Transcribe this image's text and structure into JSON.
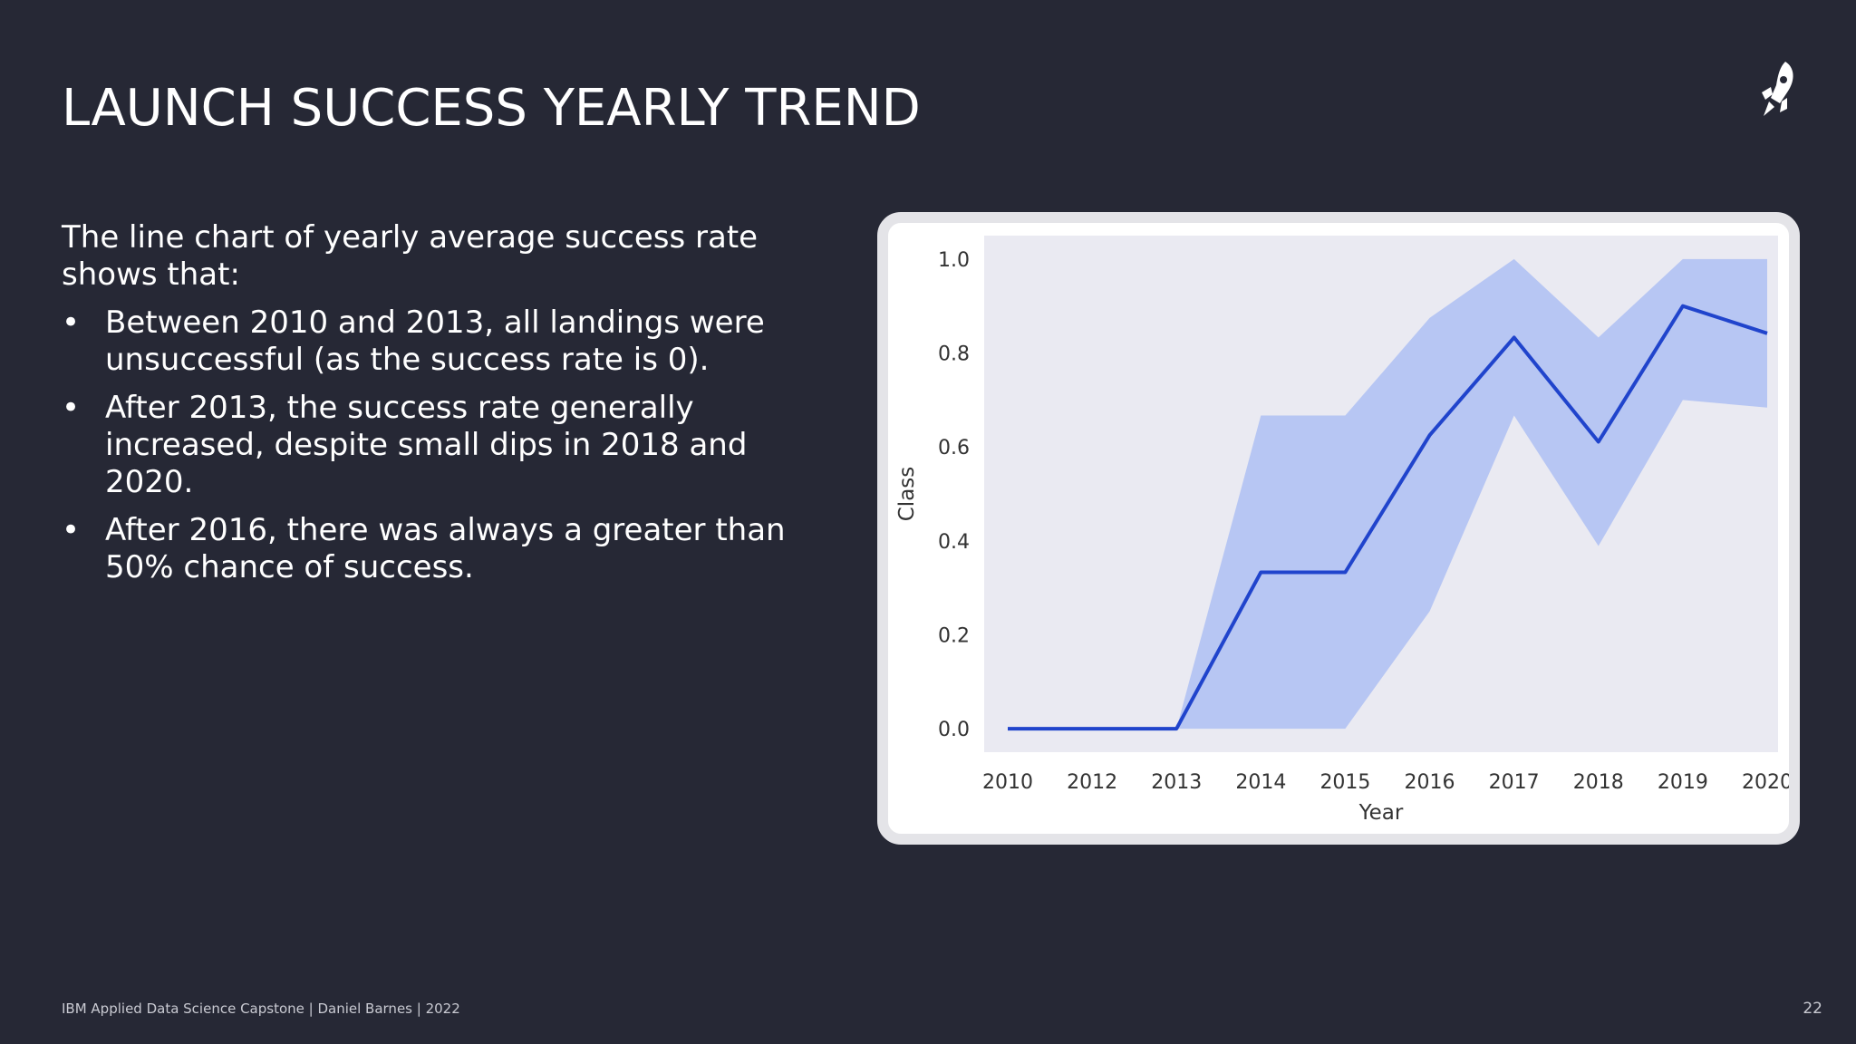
{
  "slide": {
    "title": "LAUNCH SUCCESS YEARLY TREND",
    "intro": "The line chart of yearly average success rate shows that:",
    "bullets": [
      "Between 2010 and 2013, all landings were unsuccessful (as the success rate is 0).",
      "After 2013, the success rate generally increased, despite small dips in 2018 and 2020.",
      "After 2016, there was always a greater than 50% chance of success."
    ],
    "bullet_glyph": "•",
    "footer": "IBM Applied Data Science Capstone  |  Daniel Barnes  |  2022",
    "page_number": "22",
    "logo_icon": "rocket-icon"
  },
  "colors": {
    "background": "#262835",
    "plot_background": "#eaeaf2",
    "line": "#2044cc",
    "band": "#b7c6f3"
  },
  "chart_data": {
    "type": "line",
    "xlabel": "Year",
    "ylabel": "Class",
    "x": [
      2010,
      2012,
      2013,
      2014,
      2015,
      2016,
      2017,
      2018,
      2019,
      2020
    ],
    "x_tick_labels": [
      "2010",
      "2012",
      "2013",
      "2014",
      "2015",
      "2016",
      "2017",
      "2018",
      "2019",
      "2020"
    ],
    "y_ticks": [
      0.0,
      0.2,
      0.4,
      0.6,
      0.8,
      1.0
    ],
    "y_tick_labels": [
      "0.0",
      "0.2",
      "0.4",
      "0.6",
      "0.8",
      "1.0"
    ],
    "ylim": [
      -0.05,
      1.05
    ],
    "series": [
      {
        "values": [
          0.0,
          0.0,
          0.0,
          0.333,
          0.333,
          0.625,
          0.833,
          0.611,
          0.9,
          0.842
        ],
        "ci_lower": [
          0.0,
          0.0,
          0.0,
          0.0,
          0.0,
          0.25,
          0.667,
          0.389,
          0.7,
          0.684
        ],
        "ci_upper": [
          0.0,
          0.0,
          0.0,
          0.667,
          0.667,
          0.875,
          1.0,
          0.833,
          1.0,
          1.0
        ]
      }
    ],
    "grid": false
  }
}
